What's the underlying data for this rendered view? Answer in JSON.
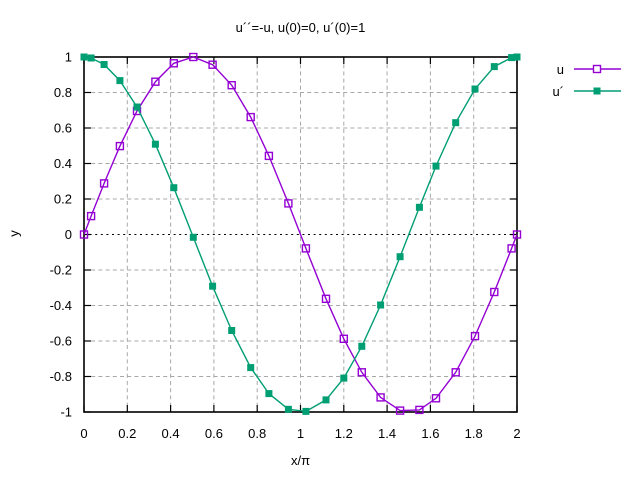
{
  "chart_data": {
    "type": "line",
    "title": "u´´=-u, u(0)=0, u´(0)=1",
    "xlabel": "x/π",
    "ylabel": "y",
    "xlim": [
      0,
      2
    ],
    "ylim": [
      -1,
      1
    ],
    "xticks": [
      0,
      0.2,
      0.4,
      0.6,
      0.8,
      1,
      1.2,
      1.4,
      1.6,
      1.8,
      2
    ],
    "xtick_labels": [
      "0",
      "0.2",
      "0.4",
      "0.6",
      "0.8",
      "1",
      "1.2",
      "1.4",
      "1.6",
      "1.8",
      "2"
    ],
    "yticks": [
      -1,
      -0.8,
      -0.6,
      -0.4,
      -0.2,
      0,
      0.2,
      0.4,
      0.6,
      0.8,
      1
    ],
    "ytick_labels": [
      "-1",
      "-0.8",
      "-0.6",
      "-0.4",
      "-0.2",
      "0",
      "0.2",
      "0.4",
      "0.6",
      "0.8",
      "1"
    ],
    "grid": true,
    "grid_color": "#a8a8a8",
    "zero_axis": true,
    "border_color": "#000000",
    "legend_position": "outside top-right",
    "x": [
      0,
      0.033,
      0.093,
      0.166,
      0.245,
      0.33,
      0.415,
      0.505,
      0.594,
      0.682,
      0.77,
      0.854,
      0.944,
      1.025,
      1.118,
      1.2,
      1.283,
      1.37,
      1.46,
      1.549,
      1.626,
      1.717,
      1.806,
      1.895,
      1.975,
      2
    ],
    "series": [
      {
        "name": "u",
        "key": "u",
        "color": "#9400d3",
        "marker": "open-square",
        "values": [
          0,
          0.1035,
          0.288,
          0.4982,
          0.6959,
          0.8607,
          0.9645,
          0.9999,
          0.9567,
          0.841,
          0.6613,
          0.4428,
          0.175,
          -0.0785,
          -0.3623,
          -0.5878,
          -0.7765,
          -0.9178,
          -0.9921,
          -0.9882,
          -0.9226,
          -0.7765,
          -0.5724,
          -0.3239,
          -0.0785,
          0
        ]
      },
      {
        "name": "u´",
        "key": "u-prime",
        "color": "#009e73",
        "marker": "filled-square",
        "values": [
          1,
          0.9946,
          0.9576,
          0.8671,
          0.7181,
          0.509,
          0.2639,
          -0.0157,
          -0.2911,
          -0.5411,
          -0.7501,
          -0.8966,
          -0.9846,
          -0.9969,
          -0.9321,
          -0.809,
          -0.6301,
          -0.3971,
          -0.1253,
          0.1533,
          0.3856,
          0.6301,
          0.82,
          0.9461,
          0.9969,
          1
        ]
      }
    ]
  }
}
